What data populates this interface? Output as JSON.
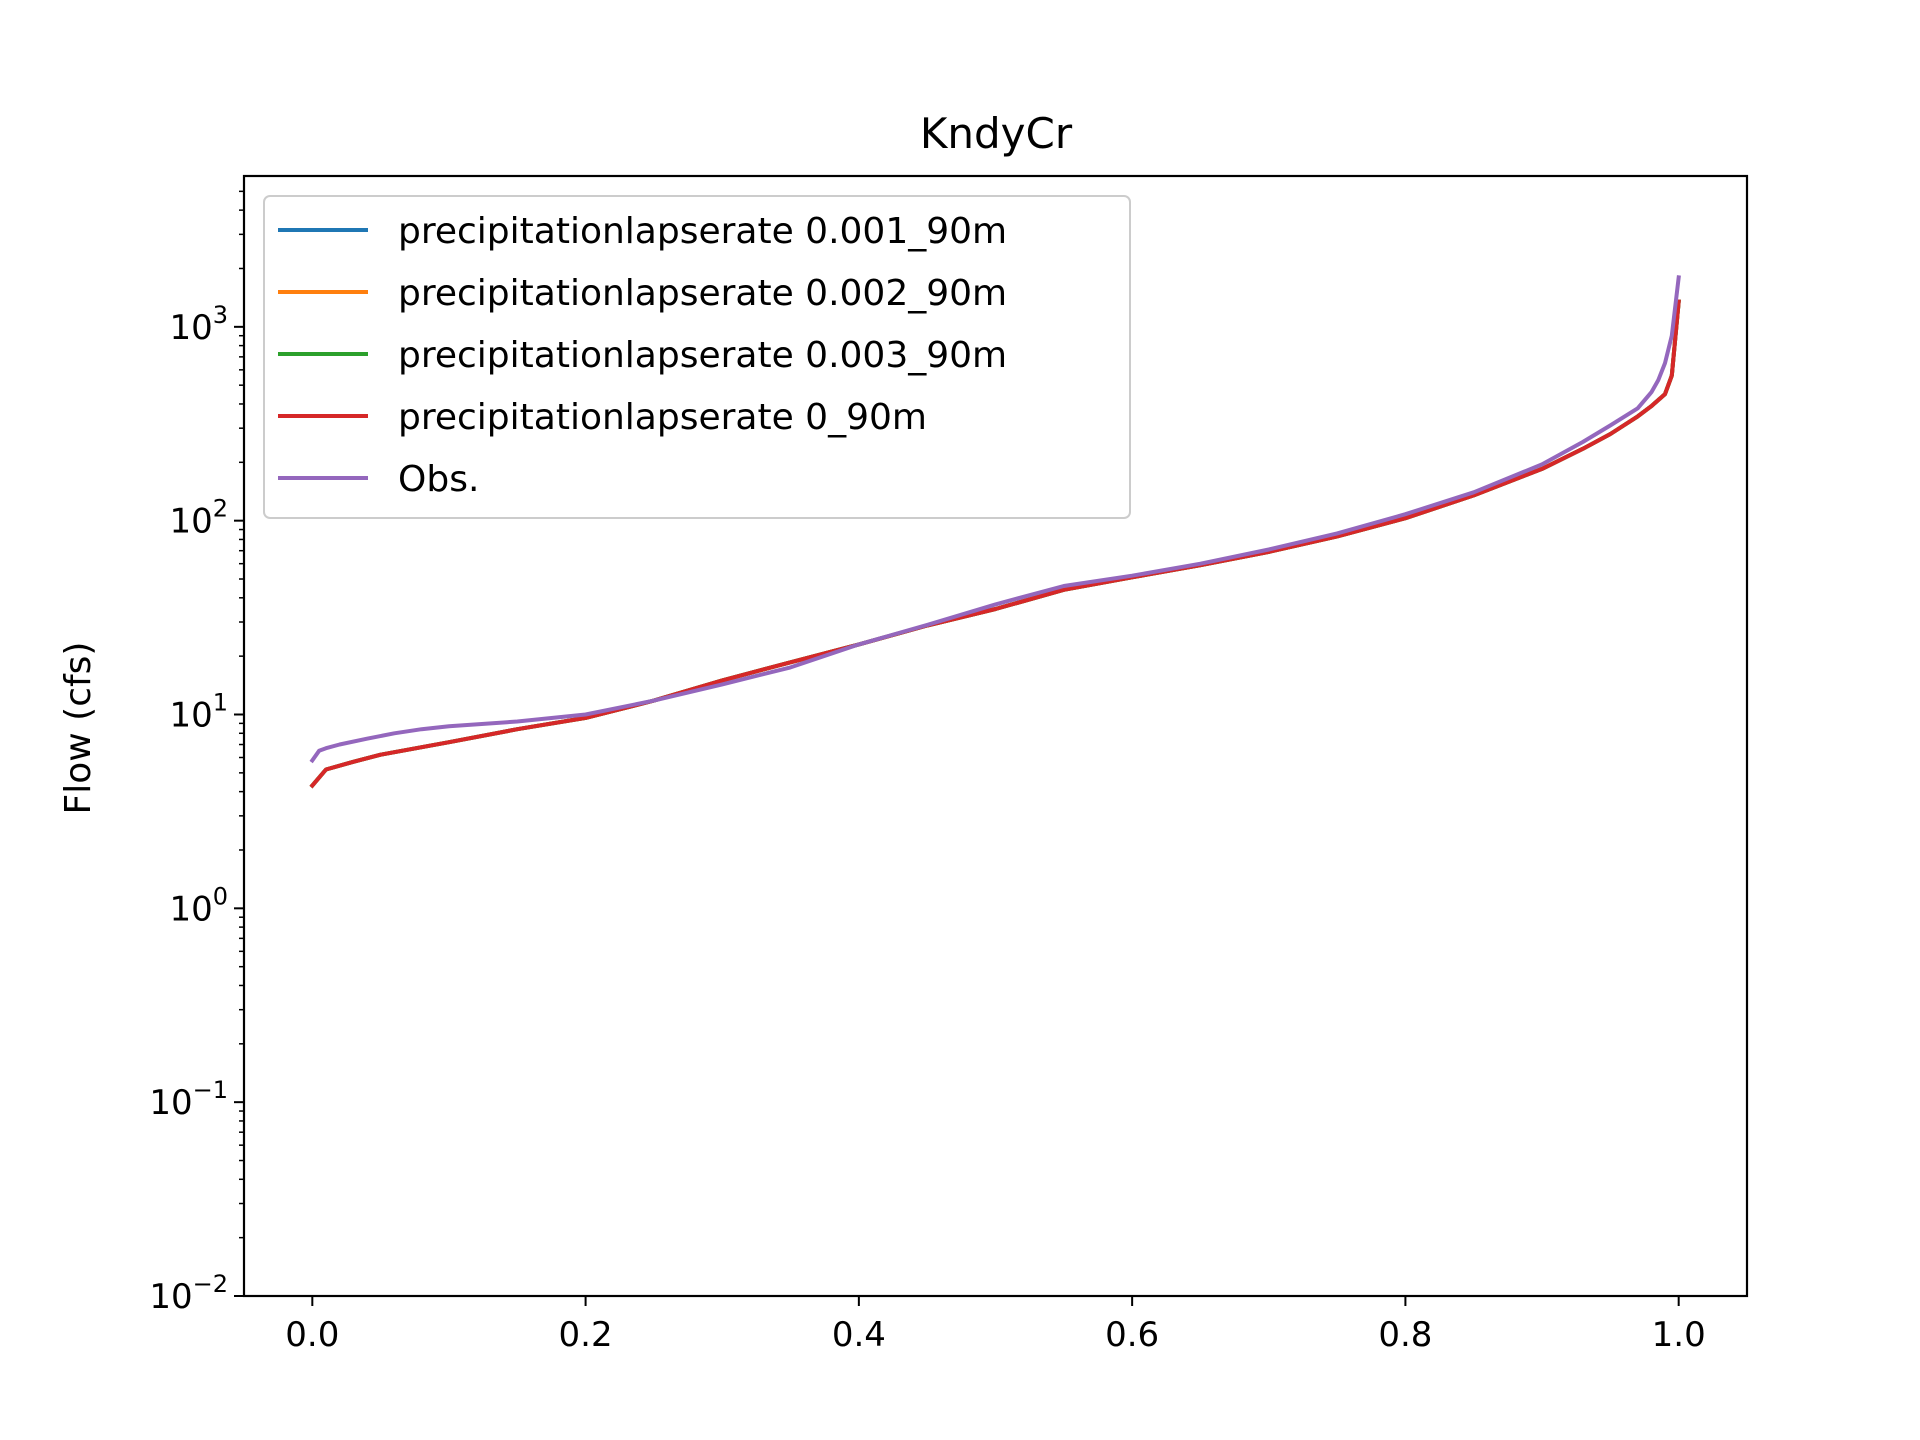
{
  "chart_data": {
    "type": "line",
    "title": "KndyCr",
    "xlabel": "",
    "ylabel": "Flow (cfs)",
    "xlim": [
      -0.05,
      1.05
    ],
    "ylim": [
      0.01,
      6000
    ],
    "yscale": "log",
    "xticks": [
      {
        "value": 0.0,
        "label": "0.0"
      },
      {
        "value": 0.2,
        "label": "0.2"
      },
      {
        "value": 0.4,
        "label": "0.4"
      },
      {
        "value": 0.6,
        "label": "0.6"
      },
      {
        "value": 0.8,
        "label": "0.8"
      },
      {
        "value": 1.0,
        "label": "1.0"
      }
    ],
    "yticks": [
      {
        "value": 0.01,
        "base": "10",
        "exp": "−2"
      },
      {
        "value": 0.1,
        "base": "10",
        "exp": "−1"
      },
      {
        "value": 1,
        "base": "10",
        "exp": "0"
      },
      {
        "value": 10,
        "base": "10",
        "exp": "1"
      },
      {
        "value": 100,
        "base": "10",
        "exp": "2"
      },
      {
        "value": 1000,
        "base": "10",
        "exp": "3"
      }
    ],
    "grid": false,
    "legend_position": "top-left",
    "series": [
      {
        "name": "precipitationlapserate 0.001_90m",
        "color": "#1f77b4",
        "x": [
          0.0,
          0.01,
          0.03,
          0.05,
          0.1,
          0.15,
          0.2,
          0.25,
          0.3,
          0.35,
          0.4,
          0.45,
          0.5,
          0.55,
          0.6,
          0.65,
          0.7,
          0.75,
          0.8,
          0.85,
          0.9,
          0.93,
          0.95,
          0.97,
          0.98,
          0.99,
          0.995,
          1.0
        ],
        "y": [
          4.3,
          5.2,
          5.7,
          6.2,
          7.2,
          8.4,
          9.6,
          11.8,
          15.0,
          18.6,
          23.0,
          28.8,
          35.0,
          44.0,
          51.0,
          59.0,
          69.0,
          83.0,
          103.0,
          135.0,
          185.0,
          235.0,
          280.0,
          345.0,
          390.0,
          450.0,
          560.0,
          1350.0
        ]
      },
      {
        "name": "precipitationlapserate 0.002_90m",
        "color": "#ff7f0e",
        "x": [
          0.0,
          0.01,
          0.03,
          0.05,
          0.1,
          0.15,
          0.2,
          0.25,
          0.3,
          0.35,
          0.4,
          0.45,
          0.5,
          0.55,
          0.6,
          0.65,
          0.7,
          0.75,
          0.8,
          0.85,
          0.9,
          0.93,
          0.95,
          0.97,
          0.98,
          0.99,
          0.995,
          1.0
        ],
        "y": [
          4.3,
          5.2,
          5.7,
          6.2,
          7.2,
          8.4,
          9.6,
          11.8,
          15.0,
          18.6,
          23.0,
          28.8,
          35.0,
          44.0,
          51.0,
          59.0,
          69.0,
          83.0,
          103.0,
          135.0,
          185.0,
          235.0,
          280.0,
          345.0,
          390.0,
          450.0,
          560.0,
          1350.0
        ]
      },
      {
        "name": "precipitationlapserate 0.003_90m",
        "color": "#2ca02c",
        "x": [
          0.0,
          0.01,
          0.03,
          0.05,
          0.1,
          0.15,
          0.2,
          0.25,
          0.3,
          0.35,
          0.4,
          0.45,
          0.5,
          0.55,
          0.6,
          0.65,
          0.7,
          0.75,
          0.8,
          0.85,
          0.9,
          0.93,
          0.95,
          0.97,
          0.98,
          0.99,
          0.995,
          1.0
        ],
        "y": [
          4.3,
          5.2,
          5.7,
          6.2,
          7.2,
          8.4,
          9.6,
          11.8,
          15.0,
          18.6,
          23.0,
          28.8,
          35.0,
          44.0,
          51.0,
          59.0,
          69.0,
          83.0,
          103.0,
          135.0,
          185.0,
          235.0,
          280.0,
          345.0,
          390.0,
          450.0,
          560.0,
          1350.0
        ]
      },
      {
        "name": "precipitationlapserate 0_90m",
        "color": "#d62728",
        "x": [
          0.0,
          0.01,
          0.03,
          0.05,
          0.1,
          0.15,
          0.2,
          0.25,
          0.3,
          0.35,
          0.4,
          0.45,
          0.5,
          0.55,
          0.6,
          0.65,
          0.7,
          0.75,
          0.8,
          0.85,
          0.9,
          0.93,
          0.95,
          0.97,
          0.98,
          0.99,
          0.995,
          1.0
        ],
        "y": [
          4.3,
          5.2,
          5.7,
          6.2,
          7.2,
          8.4,
          9.6,
          11.8,
          15.0,
          18.6,
          23.0,
          28.8,
          35.0,
          44.0,
          51.0,
          59.0,
          69.0,
          83.0,
          103.0,
          135.0,
          185.0,
          235.0,
          280.0,
          345.0,
          390.0,
          450.0,
          560.0,
          1350.0
        ]
      },
      {
        "name": "Obs.",
        "color": "#9467bd",
        "x": [
          0.0,
          0.005,
          0.01,
          0.02,
          0.04,
          0.06,
          0.08,
          0.1,
          0.15,
          0.2,
          0.25,
          0.3,
          0.35,
          0.4,
          0.45,
          0.5,
          0.55,
          0.6,
          0.65,
          0.7,
          0.75,
          0.8,
          0.85,
          0.9,
          0.93,
          0.95,
          0.97,
          0.98,
          0.985,
          0.99,
          0.995,
          1.0
        ],
        "y": [
          5.8,
          6.5,
          6.7,
          7.0,
          7.5,
          8.0,
          8.4,
          8.7,
          9.2,
          10.0,
          11.8,
          14.3,
          17.5,
          23.0,
          29.0,
          37.0,
          46.0,
          52.0,
          60.0,
          71.0,
          86.0,
          108.0,
          140.0,
          195.0,
          255.0,
          310.0,
          380.0,
          460.0,
          530.0,
          650.0,
          900.0,
          1800.0
        ]
      }
    ]
  }
}
